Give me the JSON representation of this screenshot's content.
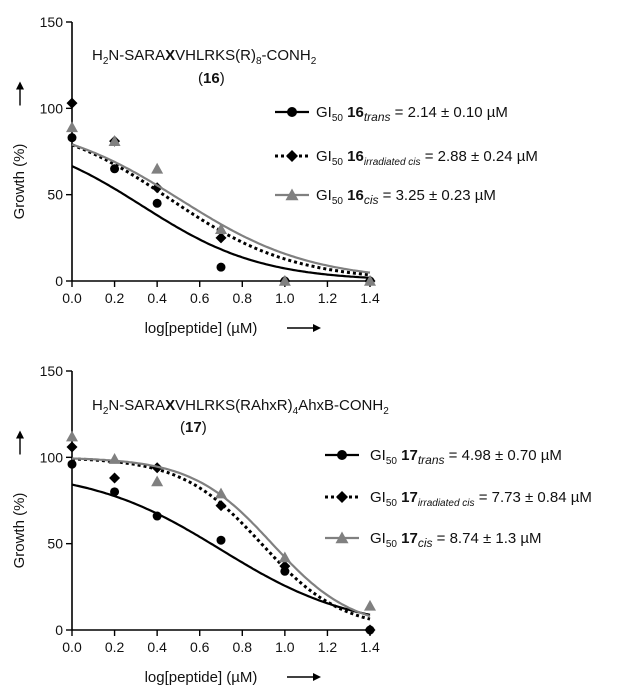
{
  "chart_data": [
    {
      "type": "scatter",
      "sequence": {
        "pre": "H",
        "sub": "2",
        "mid": "N-SARA",
        "bold": "X",
        "post": "VHLRKS(R)",
        "sub2": "8",
        "end": "-CONH",
        "sub3": "2"
      },
      "compound": "(16)",
      "compound_num": "16",
      "xlabel": "log[peptide] (µM)",
      "ylabel": "Growth (%)",
      "xlim": [
        0,
        1.4
      ],
      "ylim": [
        0,
        150
      ],
      "xticks": [
        "0.0",
        "0.2",
        "0.4",
        "0.6",
        "0.8",
        "1.0",
        "1.2",
        "1.4"
      ],
      "yticks": [
        "0",
        "50",
        "100",
        "150"
      ],
      "series": [
        {
          "name_pre": "GI",
          "name_sub": "50",
          "name_num": "16",
          "name_state": "trans",
          "value": " = 2.14 ± 0.10 µM",
          "color": "#000000",
          "marker": "circle",
          "line": "solid",
          "logGI50": 0.33,
          "top": 87,
          "hill": 1.55,
          "x": [
            0,
            0.2,
            0.4,
            0.7,
            1.0,
            1.4
          ],
          "y": [
            83,
            65,
            45,
            8,
            0,
            0
          ]
        },
        {
          "name_pre": "GI",
          "name_sub": "50",
          "name_num": "16",
          "name_state": "irradiated cis",
          "value": " = 2.88 ± 0.24 µM",
          "color": "#000000",
          "marker": "diamond",
          "line": "dotted",
          "logGI50": 0.46,
          "top": 95,
          "hill": 1.5,
          "x": [
            0,
            0.2,
            0.4,
            0.7,
            1.0,
            1.4
          ],
          "y": [
            103,
            81,
            54,
            25,
            0,
            0
          ]
        },
        {
          "name_pre": "GI",
          "name_sub": "50",
          "name_num": "16",
          "name_state": "cis",
          "value": " = 3.25 ± 0.23 µM",
          "color": "#808080",
          "marker": "triangle",
          "line": "solid",
          "logGI50": 0.51,
          "top": 94,
          "hill": 1.42,
          "x": [
            0,
            0.2,
            0.4,
            0.7,
            1.0,
            1.4
          ],
          "y": [
            89,
            81,
            65,
            30,
            0,
            0
          ]
        }
      ]
    },
    {
      "type": "scatter",
      "sequence": {
        "pre": "H",
        "sub": "2",
        "mid": "N-SARA",
        "bold": "X",
        "post": "VHLRKS(RAhxR)",
        "sub2": "4",
        "end": "AhxB-CONH",
        "sub3": "2"
      },
      "compound": "(17)",
      "compound_num": "17",
      "xlabel": "log[peptide] (µM)",
      "ylabel": "Growth (%)",
      "xlim": [
        0,
        1.4
      ],
      "ylim": [
        0,
        150
      ],
      "xticks": [
        "0.0",
        "0.2",
        "0.4",
        "0.6",
        "0.8",
        "1.0",
        "1.2",
        "1.4"
      ],
      "yticks": [
        "0",
        "50",
        "100",
        "150"
      ],
      "series": [
        {
          "name_pre": "GI",
          "name_sub": "50",
          "name_num": "17",
          "name_state": "trans",
          "value": " = 4.98 ± 0.70 µM",
          "color": "#000000",
          "marker": "circle",
          "line": "solid",
          "logGI50": 0.7,
          "top": 93,
          "hill": 1.4,
          "x": [
            0,
            0.2,
            0.4,
            0.7,
            1.0,
            1.4
          ],
          "y": [
            96,
            80,
            66,
            52,
            34,
            0
          ]
        },
        {
          "name_pre": "GI",
          "name_sub": "50",
          "name_num": "17",
          "name_state": "irradiated cis",
          "value": " = 7.73 ± 0.84 µM",
          "color": "#000000",
          "marker": "diamond",
          "line": "dotted",
          "logGI50": 0.89,
          "top": 100,
          "hill": 2.3,
          "x": [
            0,
            0.2,
            0.4,
            0.7,
            1.0,
            1.4
          ],
          "y": [
            106,
            88,
            94,
            72,
            37,
            0
          ]
        },
        {
          "name_pre": "GI",
          "name_sub": "50",
          "name_num": "17",
          "name_state": "cis",
          "value": " = 8.74 ± 1.3 µM",
          "color": "#808080",
          "marker": "triangle",
          "line": "solid",
          "logGI50": 0.94,
          "top": 100,
          "hill": 2.3,
          "x": [
            0,
            0.2,
            0.4,
            0.7,
            1.0,
            1.4
          ],
          "y": [
            112,
            99,
            86,
            79,
            42,
            14
          ]
        }
      ]
    }
  ]
}
